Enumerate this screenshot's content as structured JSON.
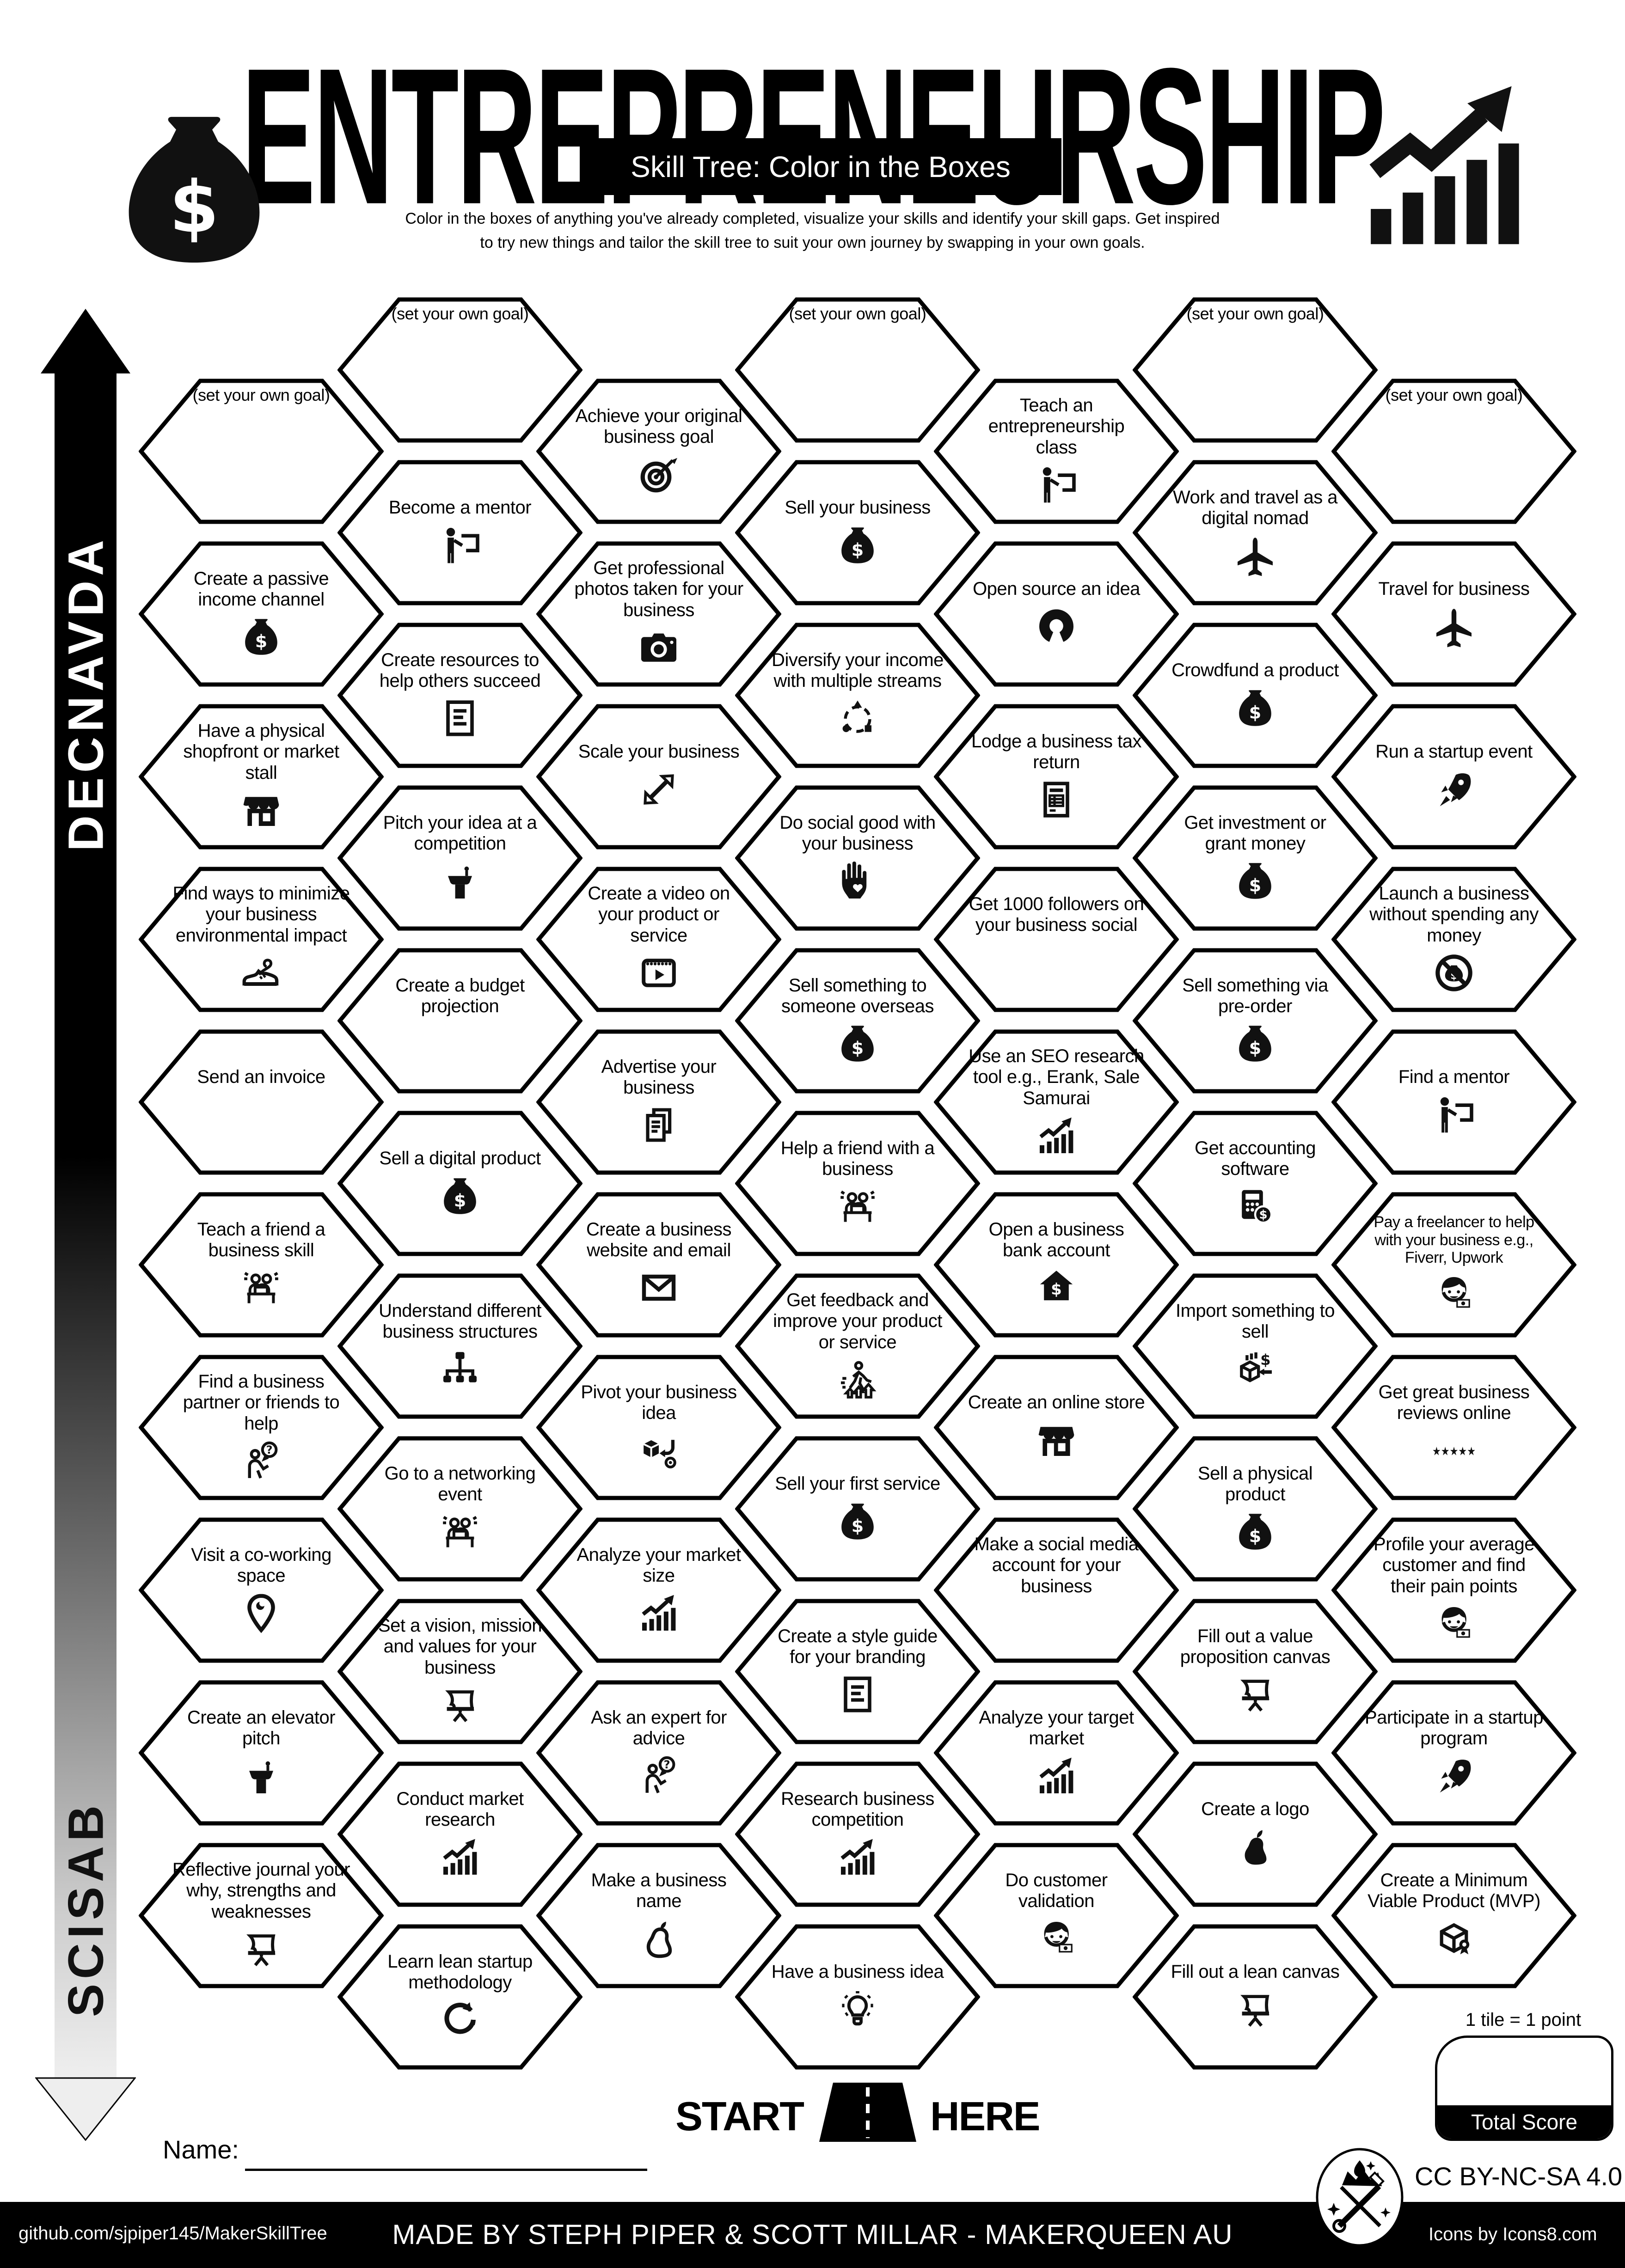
{
  "header": {
    "title": "ENTREPRENEURSHIP",
    "subtitle": "Skill Tree: Color in the Boxes",
    "description_line1": "Color in the boxes of anything you've already completed, visualize your skills and identify your skill gaps.  Get inspired",
    "description_line2": "to try new things and tailor the skill tree to suit your own journey by swapping in your own goals.",
    "money_bag_icon": "money-bag",
    "growth_icon": "chart-growth"
  },
  "axis": {
    "advanced_label": "ADVANCED",
    "basics_label": "BASICS"
  },
  "hexagons": [
    {
      "c": 0,
      "r": 0,
      "label": "(set your own goal)",
      "icon": ""
    },
    {
      "c": 0,
      "r": 1,
      "label": "Create a passive income channel",
      "icon": "money-bag"
    },
    {
      "c": 0,
      "r": 2,
      "label": "Have a physical shopfront or market stall",
      "icon": "storefront"
    },
    {
      "c": 0,
      "r": 3,
      "label": "Find ways to minimize your business environmental impact",
      "icon": "sneaker"
    },
    {
      "c": 0,
      "r": 4,
      "label": "Send an invoice",
      "icon": "invoice"
    },
    {
      "c": 0,
      "r": 5,
      "label": "Teach a friend a business skill",
      "icon": "people-desk"
    },
    {
      "c": 0,
      "r": 6,
      "label": "Find a business partner or friends to help",
      "icon": "person-question"
    },
    {
      "c": 0,
      "r": 7,
      "label": "Visit a co-working space",
      "icon": "location-pin"
    },
    {
      "c": 0,
      "r": 8,
      "label": "Create an elevator pitch",
      "icon": "podium"
    },
    {
      "c": 0,
      "r": 9,
      "label": "Reflective journal your why, strengths and weaknesses",
      "icon": "easel"
    },
    {
      "c": 1,
      "r": 0,
      "label": "(set your own goal)",
      "icon": ""
    },
    {
      "c": 1,
      "r": 1,
      "label": "Become a mentor",
      "icon": "person-board"
    },
    {
      "c": 1,
      "r": 2,
      "label": "Create resources to help others succeed",
      "icon": "document-lines"
    },
    {
      "c": 1,
      "r": 3,
      "label": "Pitch your idea at a competition",
      "icon": "podium"
    },
    {
      "c": 1,
      "r": 4,
      "label": "Create a budget projection",
      "icon": "spreadsheet"
    },
    {
      "c": 1,
      "r": 5,
      "label": "Sell a digital product",
      "icon": "money-bag"
    },
    {
      "c": 1,
      "r": 6,
      "label": "Understand different business structures",
      "icon": "org-chart"
    },
    {
      "c": 1,
      "r": 7,
      "label": "Go to a networking event",
      "icon": "people-desk"
    },
    {
      "c": 1,
      "r": 8,
      "label": "Set a vision, mission and values for your business",
      "icon": "easel"
    },
    {
      "c": 1,
      "r": 9,
      "label": "Conduct market research",
      "icon": "chart-growth"
    },
    {
      "c": 1,
      "r": 10,
      "label": "Learn lean startup methodology",
      "icon": "refresh-arrow"
    },
    {
      "c": 2,
      "r": 0,
      "label": "Achieve your original business goal",
      "icon": "target"
    },
    {
      "c": 2,
      "r": 1,
      "label": "Get professional photos taken for your business",
      "icon": "camera"
    },
    {
      "c": 2,
      "r": 2,
      "label": "Scale your business",
      "icon": "scale-arrows"
    },
    {
      "c": 2,
      "r": 3,
      "label": "Create a video on your product or service",
      "icon": "video-frame"
    },
    {
      "c": 2,
      "r": 4,
      "label": "Advertise your business",
      "icon": "flyer"
    },
    {
      "c": 2,
      "r": 5,
      "label": "Create a business website and email",
      "icon": "envelope"
    },
    {
      "c": 2,
      "r": 6,
      "label": "Pivot your business idea",
      "icon": "pivot-box"
    },
    {
      "c": 2,
      "r": 7,
      "label": "Analyze your market size",
      "icon": "chart-growth"
    },
    {
      "c": 2,
      "r": 8,
      "label": "Ask an expert for advice",
      "icon": "person-question"
    },
    {
      "c": 2,
      "r": 9,
      "label": "Make a business name",
      "icon": "pear-outline"
    },
    {
      "c": 3,
      "r": 0,
      "label": "(set your own goal)",
      "icon": ""
    },
    {
      "c": 3,
      "r": 1,
      "label": "Sell your business",
      "icon": "money-bag"
    },
    {
      "c": 3,
      "r": 2,
      "label": "Diversify your income with multiple streams",
      "icon": "diversify"
    },
    {
      "c": 3,
      "r": 3,
      "label": "Do social good with your business",
      "icon": "hand-heart"
    },
    {
      "c": 3,
      "r": 4,
      "label": "Sell something to someone overseas",
      "icon": "money-bag"
    },
    {
      "c": 3,
      "r": 5,
      "label": "Help a friend with a business",
      "icon": "people-desk"
    },
    {
      "c": 3,
      "r": 6,
      "label": "Get feedback and improve your product or service",
      "icon": "person-arrows-up"
    },
    {
      "c": 3,
      "r": 7,
      "label": "Sell your first service",
      "icon": "money-bag"
    },
    {
      "c": 3,
      "r": 8,
      "label": "Create a style guide for your branding",
      "icon": "document-lines"
    },
    {
      "c": 3,
      "r": 9,
      "label": "Research business competition",
      "icon": "chart-growth"
    },
    {
      "c": 3,
      "r": 10,
      "label": "Have a business idea",
      "icon": "lightbulb"
    },
    {
      "c": 4,
      "r": 0,
      "label": "Teach an entrepreneurship class",
      "icon": "person-board"
    },
    {
      "c": 4,
      "r": 1,
      "label": "Open source an idea",
      "icon": "open-source"
    },
    {
      "c": 4,
      "r": 2,
      "label": "Lodge a business tax return",
      "icon": "tax-doc"
    },
    {
      "c": 4,
      "r": 3,
      "label": "Get 1000 followers on your business social",
      "icon": "speech-bubbles"
    },
    {
      "c": 4,
      "r": 4,
      "label": "Use an SEO research tool e.g., Erank, Sale Samurai",
      "icon": "chart-growth"
    },
    {
      "c": 4,
      "r": 5,
      "label": "Open a business bank account",
      "icon": "bank-house"
    },
    {
      "c": 4,
      "r": 6,
      "label": "Create an online store",
      "icon": "storefront"
    },
    {
      "c": 4,
      "r": 7,
      "label": "Make a social media account for your business",
      "icon": "speech-bubbles"
    },
    {
      "c": 4,
      "r": 8,
      "label": "Analyze your target market",
      "icon": "chart-growth"
    },
    {
      "c": 4,
      "r": 9,
      "label": "Do customer validation",
      "icon": "customer-face"
    },
    {
      "c": 5,
      "r": 0,
      "label": "(set your own goal)",
      "icon": ""
    },
    {
      "c": 5,
      "r": 1,
      "label": "Work and travel as a digital nomad",
      "icon": "airplane"
    },
    {
      "c": 5,
      "r": 2,
      "label": "Crowdfund a product",
      "icon": "money-bag"
    },
    {
      "c": 5,
      "r": 3,
      "label": "Get investment or grant money",
      "icon": "money-bag"
    },
    {
      "c": 5,
      "r": 4,
      "label": "Sell something via pre-order",
      "icon": "money-bag"
    },
    {
      "c": 5,
      "r": 5,
      "label": "Get accounting software",
      "icon": "calculator"
    },
    {
      "c": 5,
      "r": 6,
      "label": "Import something to sell",
      "icon": "import-box"
    },
    {
      "c": 5,
      "r": 7,
      "label": "Sell a physical product",
      "icon": "money-bag"
    },
    {
      "c": 5,
      "r": 8,
      "label": "Fill out a value proposition canvas",
      "icon": "easel"
    },
    {
      "c": 5,
      "r": 9,
      "label": "Create a logo",
      "icon": "pear-filled"
    },
    {
      "c": 5,
      "r": 10,
      "label": "Fill out a lean canvas",
      "icon": "easel"
    },
    {
      "c": 6,
      "r": 0,
      "label": "(set your own goal)",
      "icon": ""
    },
    {
      "c": 6,
      "r": 1,
      "label": "Travel for business",
      "icon": "airplane"
    },
    {
      "c": 6,
      "r": 2,
      "label": "Run a startup event",
      "icon": "rocket"
    },
    {
      "c": 6,
      "r": 3,
      "label": "Launch a business without spending any money",
      "icon": "no-money"
    },
    {
      "c": 6,
      "r": 4,
      "label": "Find a mentor",
      "icon": "person-board"
    },
    {
      "c": 6,
      "r": 5,
      "label": "Pay a freelancer to help with your business e.g., Fiverr, Upwork",
      "icon": "customer-face"
    },
    {
      "c": 6,
      "r": 6,
      "label": "Get great business reviews online",
      "icon": "five-stars"
    },
    {
      "c": 6,
      "r": 7,
      "label": "Profile your average customer and find their pain points",
      "icon": "customer-face"
    },
    {
      "c": 6,
      "r": 8,
      "label": "Participate in a startup program",
      "icon": "rocket"
    },
    {
      "c": 6,
      "r": 9,
      "label": "Create a Minimum Viable Product (MVP)",
      "icon": "mvp-box"
    }
  ],
  "footer": {
    "start_label": "START",
    "here_label": "HERE",
    "road_icon": "road",
    "name_label": "Name:",
    "tile_note": "1 tile = 1 point",
    "total_score_label": "Total Score",
    "license": "CC BY-NC-SA 4.0",
    "github": "github.com/sjpiper145/MakerSkillTree",
    "credit": "MADE BY STEPH PIPER & SCOTT MILLAR  -  MAKERQUEEN AU",
    "icons_credit": "Icons by Icons8.com",
    "logo_icon": "makerqueen-logo"
  },
  "colors": {
    "ink": "#000000",
    "paper": "#ffffff"
  }
}
